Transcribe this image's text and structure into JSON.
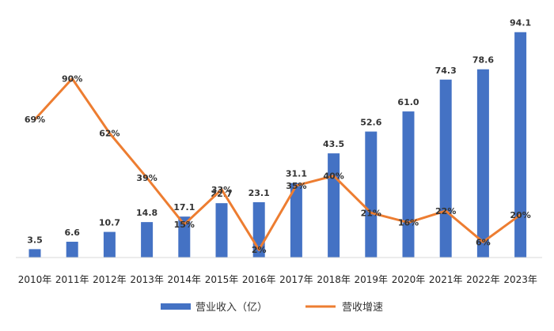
{
  "chart_data": {
    "type": "bar",
    "categories": [
      "2010年",
      "2011年",
      "2012年",
      "2013年",
      "2014年",
      "2015年",
      "2016年",
      "2017年",
      "2018年",
      "2019年",
      "2020年",
      "2021年",
      "2022年",
      "2023年"
    ],
    "series": [
      {
        "name": "营业收入（亿）",
        "type": "bar",
        "color": "#4472C4",
        "values": [
          3.5,
          6.6,
          10.7,
          14.8,
          17.1,
          22.7,
          23.1,
          31.1,
          43.5,
          52.6,
          61.0,
          74.3,
          78.6,
          94.1
        ],
        "labels": [
          "3.5",
          "6.6",
          "10.7",
          "14.8",
          "17.1",
          "22.7",
          "23.1",
          "31.1",
          "43.5",
          "52.6",
          "61.0",
          "74.3",
          "78.6",
          "94.1"
        ]
      },
      {
        "name": "营收增速",
        "type": "line",
        "color": "#ED7D31",
        "values": [
          69,
          90,
          62,
          39,
          15,
          33,
          2,
          35,
          40,
          21,
          16,
          22,
          6,
          20
        ],
        "labels": [
          "69%",
          "90%",
          "62%",
          "39%",
          "15%",
          "33%",
          "2%",
          "35%",
          "40%",
          "21%",
          "16%",
          "22%",
          "6%",
          "20%"
        ]
      }
    ],
    "bar_axis": {
      "min": 0,
      "max": 95
    },
    "line_axis": {
      "min": -2,
      "max": 115
    },
    "legend_position": "bottom",
    "grid": false
  }
}
